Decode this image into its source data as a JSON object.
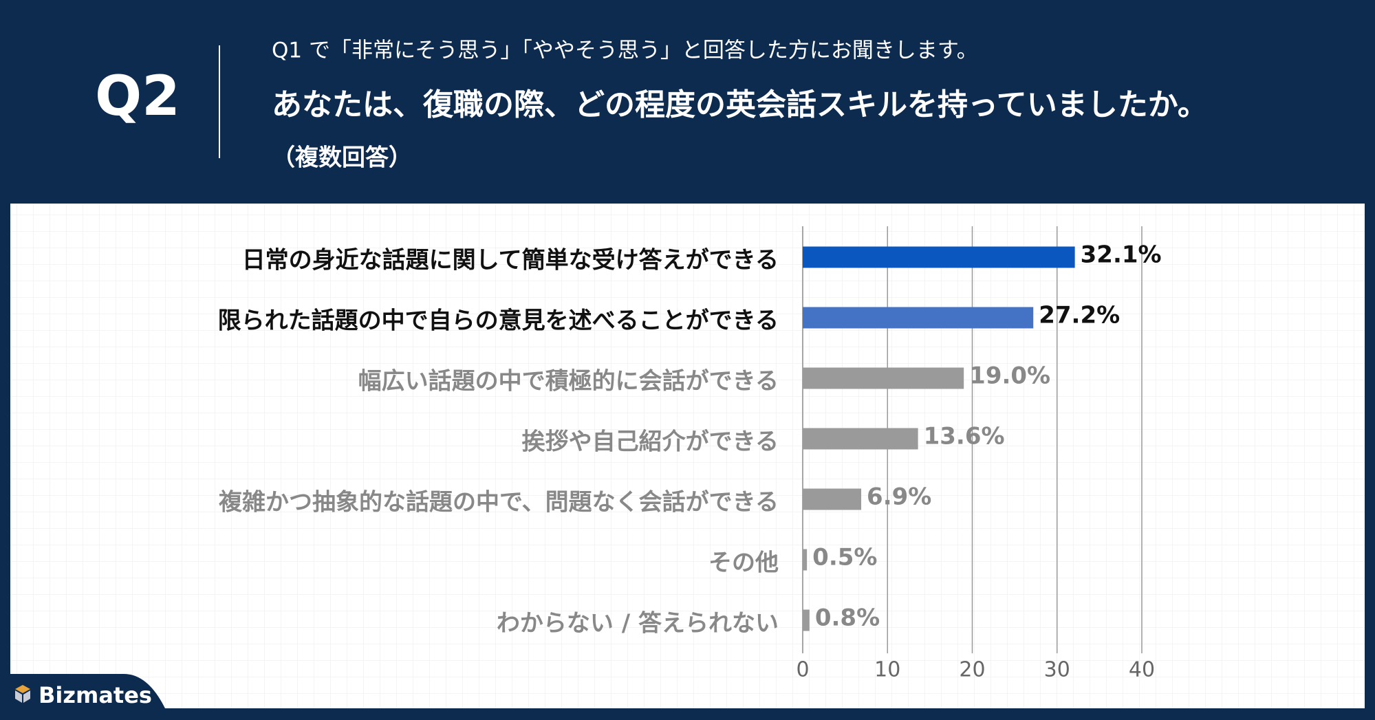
{
  "header": {
    "question_number": "Q2",
    "line1": "Q1 で「非常にそう思う」「ややそう思う」と回答した方にお聞きします。",
    "line2": "あなたは、復職の際、どの程度の英会話スキルを持っていましたか。",
    "line3": "（複数回答）"
  },
  "logo": "Bizmates",
  "chart_data": {
    "type": "bar",
    "orientation": "horizontal",
    "categories": [
      "日常の身近な話題に関して簡単な受け答えができる",
      "限られた話題の中で自らの意見を述べることができる",
      "幅広い話題の中で積極的に会話ができる",
      "挨拶や自己紹介ができる",
      "複雑かつ抽象的な話題の中で、問題なく会話ができる",
      "その他",
      "わからない / 答えられない"
    ],
    "values": [
      32.1,
      27.2,
      19.0,
      13.6,
      6.9,
      0.5,
      0.8
    ],
    "value_labels": [
      "32.1%",
      "27.2%",
      "19.0%",
      "13.6%",
      "6.9%",
      "0.5%",
      "0.8%"
    ],
    "colors": [
      "#0b57c0",
      "#4472c4",
      "#9a9a9a",
      "#9a9a9a",
      "#9a9a9a",
      "#9a9a9a",
      "#9a9a9a"
    ],
    "label_colors": [
      "#111111",
      "#111111",
      "#888888",
      "#888888",
      "#888888",
      "#888888",
      "#888888"
    ],
    "xlim": [
      0,
      40
    ],
    "xticks": [
      0,
      10,
      20,
      30,
      40
    ],
    "grid": true
  }
}
